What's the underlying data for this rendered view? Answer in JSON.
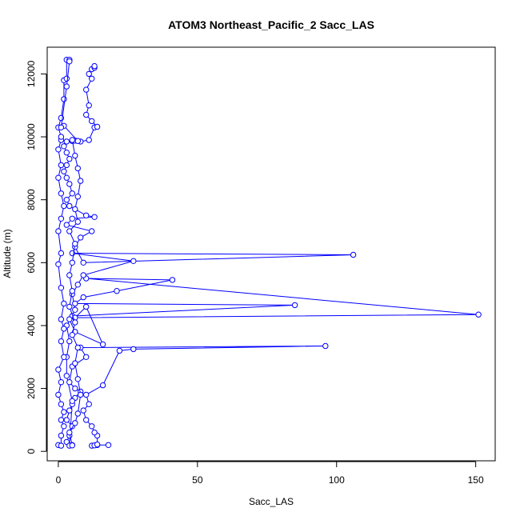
{
  "chart_data": {
    "type": "line",
    "title": "ATOM3 Northeast_Pacific_2 Sacc_LAS",
    "xlabel": "Sacc_LAS",
    "ylabel": "Altitude (m)",
    "xlim": [
      -4,
      157
    ],
    "ylim": [
      -300,
      12850
    ],
    "xticks": [
      0,
      50,
      100,
      150
    ],
    "yticks": [
      0,
      2000,
      4000,
      6000,
      8000,
      10000,
      12000
    ],
    "grid": false,
    "marker": "open-circle",
    "series": [
      {
        "color": "#0000ff",
        "points": [
          [
            18,
            200
          ],
          [
            14,
            200
          ],
          [
            12,
            180
          ],
          [
            13,
            190
          ],
          [
            14,
            220
          ],
          [
            14,
            500
          ],
          [
            13,
            600
          ],
          [
            12,
            800
          ],
          [
            10,
            1000
          ],
          [
            9,
            1300
          ],
          [
            11,
            1500
          ],
          [
            10,
            1800
          ],
          [
            16,
            2100
          ],
          [
            22,
            3200
          ],
          [
            27,
            3250
          ],
          [
            96,
            3350
          ],
          [
            8,
            3300
          ],
          [
            10,
            3000
          ],
          [
            5,
            2700
          ],
          [
            4,
            2200
          ],
          [
            6,
            2000
          ],
          [
            8,
            1900
          ],
          [
            6,
            1700
          ],
          [
            5,
            1500
          ],
          [
            4,
            1300
          ],
          [
            3,
            1000
          ],
          [
            5,
            800
          ],
          [
            4,
            500
          ],
          [
            3,
            300
          ],
          [
            5,
            200
          ],
          [
            4,
            180
          ],
          [
            5,
            1600
          ],
          [
            3,
            2400
          ],
          [
            3,
            3000
          ],
          [
            4,
            3500
          ],
          [
            3,
            4000
          ],
          [
            5,
            4300
          ],
          [
            85,
            4650
          ],
          [
            6,
            4700
          ],
          [
            9,
            4900
          ],
          [
            21,
            5100
          ],
          [
            41,
            5450
          ],
          [
            10,
            5500
          ],
          [
            151,
            4350
          ],
          [
            6,
            4250
          ],
          [
            10,
            4600
          ],
          [
            16,
            3400
          ],
          [
            6,
            3800
          ],
          [
            4,
            4200
          ],
          [
            6,
            4500
          ],
          [
            5,
            5000
          ],
          [
            7,
            5300
          ],
          [
            9,
            5600
          ],
          [
            27,
            6050
          ],
          [
            5,
            6300
          ],
          [
            106,
            6250
          ],
          [
            9,
            6000
          ],
          [
            6,
            6500
          ],
          [
            8,
            6800
          ],
          [
            12,
            7000
          ],
          [
            3,
            7200
          ],
          [
            5,
            7400
          ],
          [
            13,
            7450
          ],
          [
            10,
            7500
          ],
          [
            4,
            7800
          ],
          [
            3,
            8000
          ],
          [
            5,
            8200
          ],
          [
            4,
            8500
          ],
          [
            3,
            8700
          ],
          [
            2,
            8900
          ],
          [
            3,
            9100
          ],
          [
            4,
            9300
          ],
          [
            3,
            9500
          ],
          [
            2,
            9700
          ],
          [
            3,
            9850
          ],
          [
            5,
            9870
          ],
          [
            6,
            9880
          ],
          [
            8,
            9850
          ],
          [
            11,
            9900
          ],
          [
            13,
            10300
          ],
          [
            14,
            10320
          ],
          [
            12,
            10500
          ],
          [
            10,
            10700
          ],
          [
            11,
            11000
          ],
          [
            10,
            11500
          ],
          [
            12,
            11850
          ],
          [
            11,
            12000
          ],
          [
            12,
            12150
          ],
          [
            13,
            12200
          ],
          [
            13,
            12250
          ]
        ]
      },
      {
        "color": "#0000ff",
        "points": [
          [
            0,
            200
          ],
          [
            1,
            180
          ],
          [
            1,
            500
          ],
          [
            2,
            800
          ],
          [
            1,
            1000
          ],
          [
            2,
            1250
          ],
          [
            1,
            1500
          ],
          [
            0,
            1800
          ],
          [
            1,
            2200
          ],
          [
            0,
            2600
          ],
          [
            2,
            3000
          ],
          [
            1,
            3500
          ],
          [
            2,
            3900
          ],
          [
            1,
            4200
          ],
          [
            2,
            4700
          ],
          [
            1,
            5200
          ],
          [
            0,
            5950
          ],
          [
            1,
            6300
          ],
          [
            0,
            7000
          ],
          [
            1,
            7400
          ],
          [
            2,
            7800
          ],
          [
            1,
            8200
          ],
          [
            0,
            8700
          ],
          [
            1,
            9100
          ],
          [
            0,
            9600
          ],
          [
            1,
            9900
          ],
          [
            1,
            10000
          ],
          [
            0,
            10300
          ],
          [
            1,
            10600
          ],
          [
            2,
            11200
          ],
          [
            2,
            11800
          ],
          [
            3,
            11850
          ],
          [
            3,
            12450
          ],
          [
            4,
            12450
          ]
        ]
      },
      {
        "color": "#0000ff",
        "points": [
          [
            5,
            190
          ],
          [
            4,
            600
          ],
          [
            6,
            900
          ],
          [
            7,
            1200
          ],
          [
            8,
            1800
          ],
          [
            7,
            2300
          ],
          [
            6,
            2800
          ],
          [
            7,
            3300
          ],
          [
            5,
            3700
          ],
          [
            6,
            4100
          ],
          [
            4,
            4600
          ],
          [
            5,
            5100
          ],
          [
            4,
            5600
          ],
          [
            5,
            6000
          ],
          [
            6,
            6600
          ],
          [
            4,
            7000
          ],
          [
            7,
            7300
          ],
          [
            6,
            7700
          ],
          [
            7,
            8100
          ],
          [
            8,
            8600
          ],
          [
            7,
            9000
          ],
          [
            6,
            9400
          ],
          [
            5,
            9900
          ],
          [
            7,
            9870
          ],
          [
            2,
            10350
          ],
          [
            1,
            10300
          ],
          [
            3,
            11600
          ],
          [
            4,
            12400
          ]
        ]
      }
    ]
  }
}
